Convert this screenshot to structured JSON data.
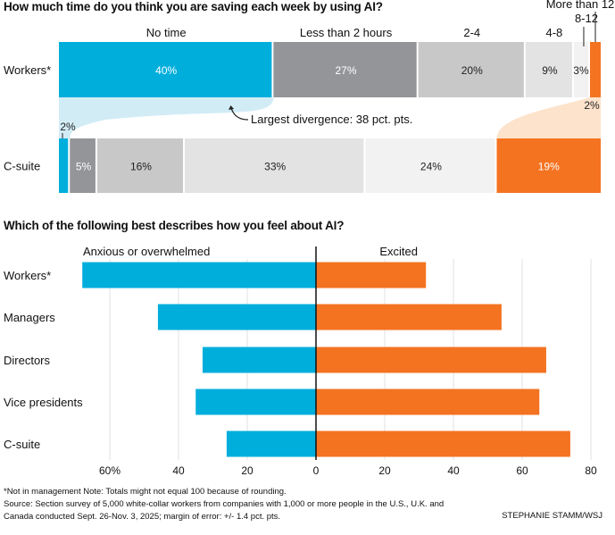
{
  "chart_data": [
    {
      "type": "bar",
      "subtype": "stacked-horizontal-100",
      "title": "How much time do you think you are saving each week by using AI?",
      "categories": [
        "No time",
        "Less than 2 hours",
        "2-4",
        "4-8",
        "8-12",
        "More than 12"
      ],
      "colors": [
        "#00aedc",
        "#939598",
        "#c8c8c8",
        "#e3e3e3",
        "#f2f2f2",
        "#f47321"
      ],
      "label_colors": [
        "#ffffff",
        "#ffffff",
        "#222222",
        "#222222",
        "#222222",
        "#ffffff"
      ],
      "series": [
        {
          "name": "Workers*",
          "values": [
            40,
            27,
            20,
            9,
            3,
            2
          ]
        },
        {
          "name": "C-suite",
          "values": [
            2,
            5,
            16,
            33,
            24,
            19
          ]
        }
      ],
      "value_labels": {
        "Workers*": [
          "40%",
          "27%",
          "20%",
          "9%",
          "3%",
          "2%"
        ],
        "C-suite": [
          "2%",
          "5%",
          "16%",
          "33%",
          "24%",
          "19%"
        ]
      },
      "annotation": "Largest divergence: 38 pct. pts."
    },
    {
      "type": "bar",
      "subtype": "diverging-horizontal",
      "title": "Which of the following best describes how you feel about AI?",
      "categories": [
        "Workers*",
        "Managers",
        "Directors",
        "Vice presidents",
        "C-suite"
      ],
      "series": [
        {
          "name": "Anxious or overwhelmed",
          "color": "#00aedc",
          "values": [
            68,
            46,
            33,
            35,
            26
          ]
        },
        {
          "name": "Excited",
          "color": "#f47321",
          "values": [
            32,
            54,
            67,
            65,
            74
          ]
        }
      ],
      "xlim": [
        -70,
        80
      ],
      "xticks": [
        -60,
        -40,
        -20,
        0,
        20,
        40,
        60,
        80
      ],
      "xtick_labels": [
        "60%",
        "40",
        "20",
        "0",
        "20",
        "40",
        "60",
        "80"
      ],
      "grid": true
    }
  ],
  "footer": {
    "line1": "*Not in management   Note: Totals might not equal 100 because of rounding.",
    "line2": "Source: Section survey of 5,000 white-collar workers from companies with 1,000 or more people in the U.S., U.K. and",
    "line3": "Canada conducted Sept. 26-Nov. 3, 2025; margin of error: +/- 1.4 pct. pts.",
    "credit": "STEPHANIE STAMM/WSJ"
  }
}
